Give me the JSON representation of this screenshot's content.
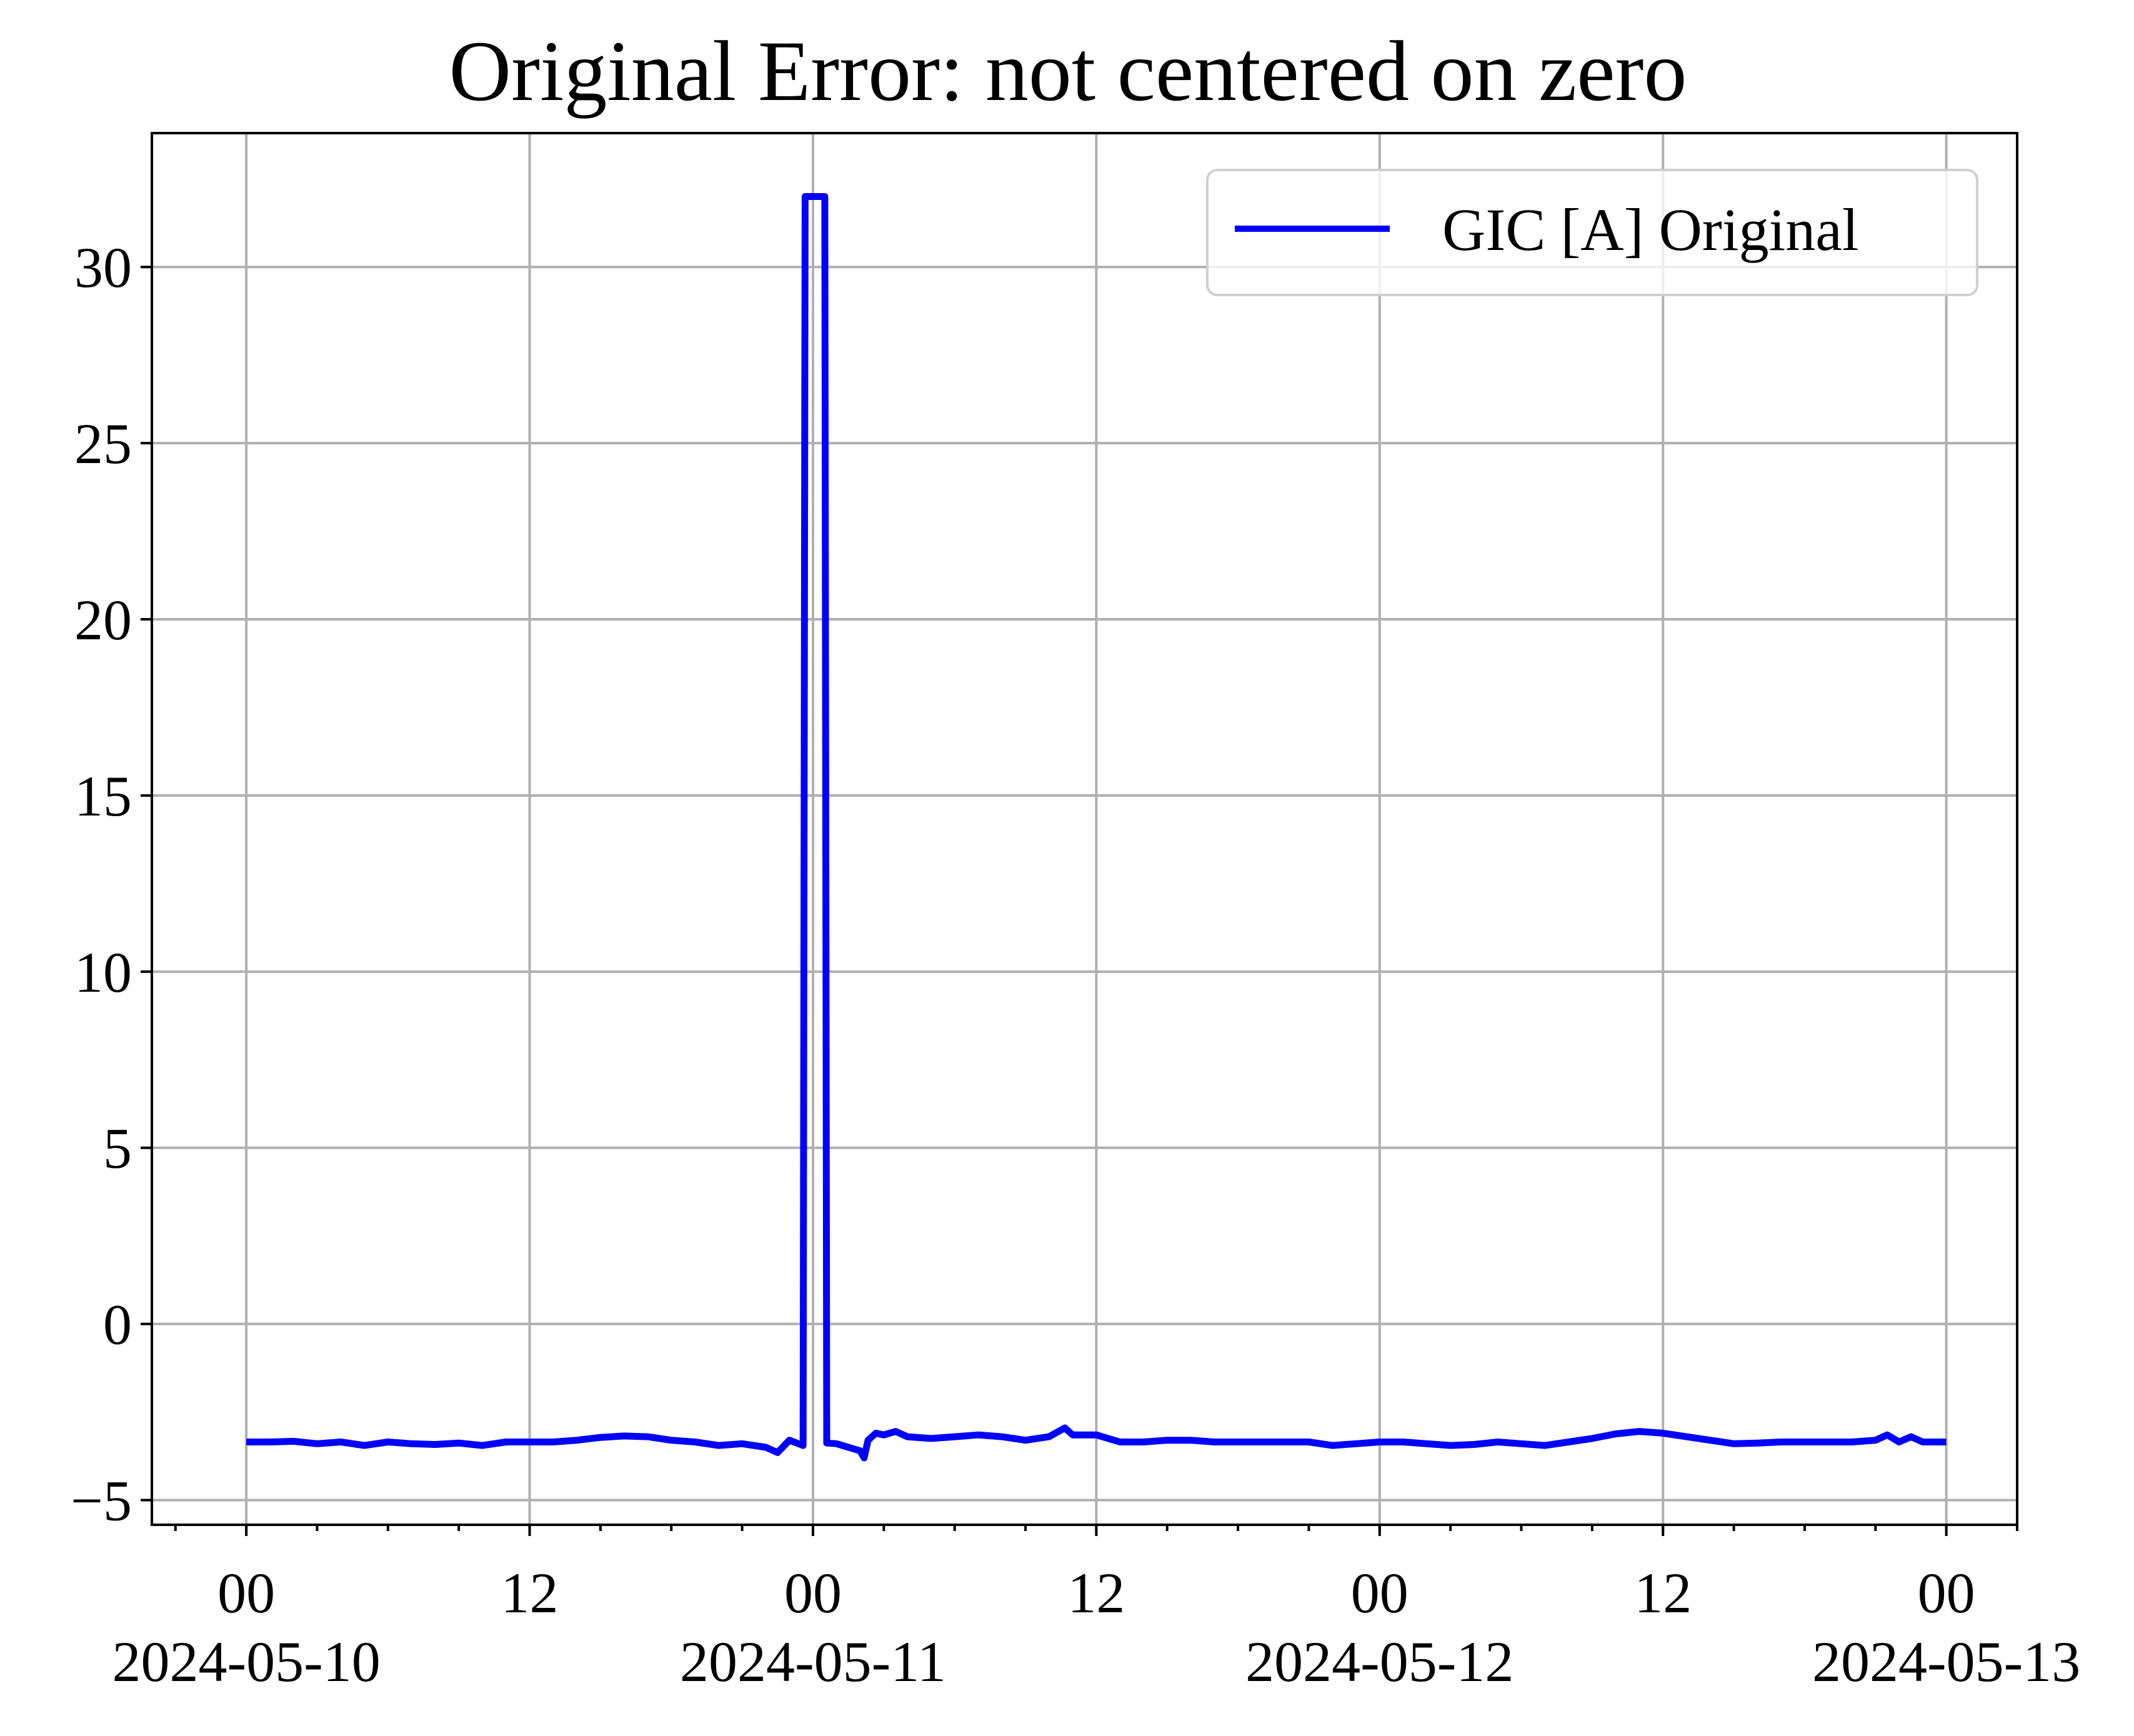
{
  "chart_data": {
    "type": "line",
    "title": "Original Error: not centered on zero",
    "xlabel": "",
    "ylabel": "",
    "x_axis": {
      "type": "datetime",
      "range": [
        "2024-05-09T20:00",
        "2024-05-13T03:00"
      ],
      "major_ticks": [
        {
          "t": "2024-05-10T00:00",
          "label": "00",
          "sublabel": "2024-05-10"
        },
        {
          "t": "2024-05-10T12:00",
          "label": "12",
          "sublabel": ""
        },
        {
          "t": "2024-05-11T00:00",
          "label": "00",
          "sublabel": "2024-05-11"
        },
        {
          "t": "2024-05-11T12:00",
          "label": "12",
          "sublabel": ""
        },
        {
          "t": "2024-05-12T00:00",
          "label": "00",
          "sublabel": "2024-05-12"
        },
        {
          "t": "2024-05-12T12:00",
          "label": "12",
          "sublabel": ""
        },
        {
          "t": "2024-05-13T00:00",
          "label": "00",
          "sublabel": "2024-05-13"
        }
      ],
      "minor_tick_interval_hours": 3
    },
    "y_axis": {
      "range": [
        -5.7,
        33.8
      ],
      "ticks": [
        -5,
        0,
        5,
        10,
        15,
        20,
        25,
        30
      ],
      "tick_labels": [
        "−5",
        "0",
        "5",
        "10",
        "15",
        "20",
        "25",
        "30"
      ]
    },
    "grid": true,
    "legend_position": "top-right",
    "series": [
      {
        "name": "GIC [A] Original",
        "color": "#0000ff",
        "points": [
          [
            "2024-05-10T00:00",
            -3.35
          ],
          [
            "2024-05-10T01:00",
            -3.35
          ],
          [
            "2024-05-10T02:00",
            -3.33
          ],
          [
            "2024-05-10T03:00",
            -3.4
          ],
          [
            "2024-05-10T04:00",
            -3.35
          ],
          [
            "2024-05-10T05:00",
            -3.45
          ],
          [
            "2024-05-10T06:00",
            -3.35
          ],
          [
            "2024-05-10T07:00",
            -3.4
          ],
          [
            "2024-05-10T08:00",
            -3.42
          ],
          [
            "2024-05-10T09:00",
            -3.38
          ],
          [
            "2024-05-10T10:00",
            -3.45
          ],
          [
            "2024-05-10T11:00",
            -3.35
          ],
          [
            "2024-05-10T12:00",
            -3.35
          ],
          [
            "2024-05-10T13:00",
            -3.35
          ],
          [
            "2024-05-10T14:00",
            -3.3
          ],
          [
            "2024-05-10T15:00",
            -3.22
          ],
          [
            "2024-05-10T16:00",
            -3.18
          ],
          [
            "2024-05-10T17:00",
            -3.2
          ],
          [
            "2024-05-10T18:00",
            -3.3
          ],
          [
            "2024-05-10T19:00",
            -3.35
          ],
          [
            "2024-05-10T20:00",
            -3.45
          ],
          [
            "2024-05-10T21:00",
            -3.4
          ],
          [
            "2024-05-10T22:00",
            -3.5
          ],
          [
            "2024-05-10T22:30",
            -3.65
          ],
          [
            "2024-05-10T23:00",
            -3.3
          ],
          [
            "2024-05-10T23:35",
            -3.45
          ],
          [
            "2024-05-10T23:40",
            32.0
          ],
          [
            "2024-05-11T00:30",
            32.0
          ],
          [
            "2024-05-11T00:35",
            -3.38
          ],
          [
            "2024-05-11T01:00",
            -3.4
          ],
          [
            "2024-05-11T01:30",
            -3.5
          ],
          [
            "2024-05-11T02:00",
            -3.6
          ],
          [
            "2024-05-11T02:10",
            -3.8
          ],
          [
            "2024-05-11T02:20",
            -3.3
          ],
          [
            "2024-05-11T02:40",
            -3.1
          ],
          [
            "2024-05-11T03:00",
            -3.15
          ],
          [
            "2024-05-11T03:30",
            -3.05
          ],
          [
            "2024-05-11T04:00",
            -3.2
          ],
          [
            "2024-05-11T05:00",
            -3.25
          ],
          [
            "2024-05-11T06:00",
            -3.2
          ],
          [
            "2024-05-11T07:00",
            -3.15
          ],
          [
            "2024-05-11T08:00",
            -3.2
          ],
          [
            "2024-05-11T09:00",
            -3.3
          ],
          [
            "2024-05-11T10:00",
            -3.2
          ],
          [
            "2024-05-11T10:40",
            -2.95
          ],
          [
            "2024-05-11T11:00",
            -3.15
          ],
          [
            "2024-05-11T12:00",
            -3.15
          ],
          [
            "2024-05-11T13:00",
            -3.35
          ],
          [
            "2024-05-11T14:00",
            -3.35
          ],
          [
            "2024-05-11T15:00",
            -3.3
          ],
          [
            "2024-05-11T16:00",
            -3.3
          ],
          [
            "2024-05-11T17:00",
            -3.35
          ],
          [
            "2024-05-11T18:00",
            -3.35
          ],
          [
            "2024-05-11T19:00",
            -3.35
          ],
          [
            "2024-05-11T20:00",
            -3.35
          ],
          [
            "2024-05-11T21:00",
            -3.35
          ],
          [
            "2024-05-11T22:00",
            -3.45
          ],
          [
            "2024-05-11T23:00",
            -3.4
          ],
          [
            "2024-05-12T00:00",
            -3.35
          ],
          [
            "2024-05-12T01:00",
            -3.35
          ],
          [
            "2024-05-12T02:00",
            -3.4
          ],
          [
            "2024-05-12T03:00",
            -3.45
          ],
          [
            "2024-05-12T04:00",
            -3.42
          ],
          [
            "2024-05-12T05:00",
            -3.35
          ],
          [
            "2024-05-12T06:00",
            -3.4
          ],
          [
            "2024-05-12T07:00",
            -3.45
          ],
          [
            "2024-05-12T08:00",
            -3.35
          ],
          [
            "2024-05-12T09:00",
            -3.25
          ],
          [
            "2024-05-12T10:00",
            -3.12
          ],
          [
            "2024-05-12T11:00",
            -3.05
          ],
          [
            "2024-05-12T12:00",
            -3.1
          ],
          [
            "2024-05-12T13:00",
            -3.2
          ],
          [
            "2024-05-12T14:00",
            -3.3
          ],
          [
            "2024-05-12T15:00",
            -3.4
          ],
          [
            "2024-05-12T16:00",
            -3.38
          ],
          [
            "2024-05-12T17:00",
            -3.35
          ],
          [
            "2024-05-12T18:00",
            -3.35
          ],
          [
            "2024-05-12T19:00",
            -3.35
          ],
          [
            "2024-05-12T20:00",
            -3.35
          ],
          [
            "2024-05-12T21:00",
            -3.3
          ],
          [
            "2024-05-12T21:30",
            -3.15
          ],
          [
            "2024-05-12T22:00",
            -3.35
          ],
          [
            "2024-05-12T22:30",
            -3.2
          ],
          [
            "2024-05-12T23:00",
            -3.35
          ],
          [
            "2024-05-13T00:00",
            -3.35
          ]
        ]
      }
    ]
  }
}
